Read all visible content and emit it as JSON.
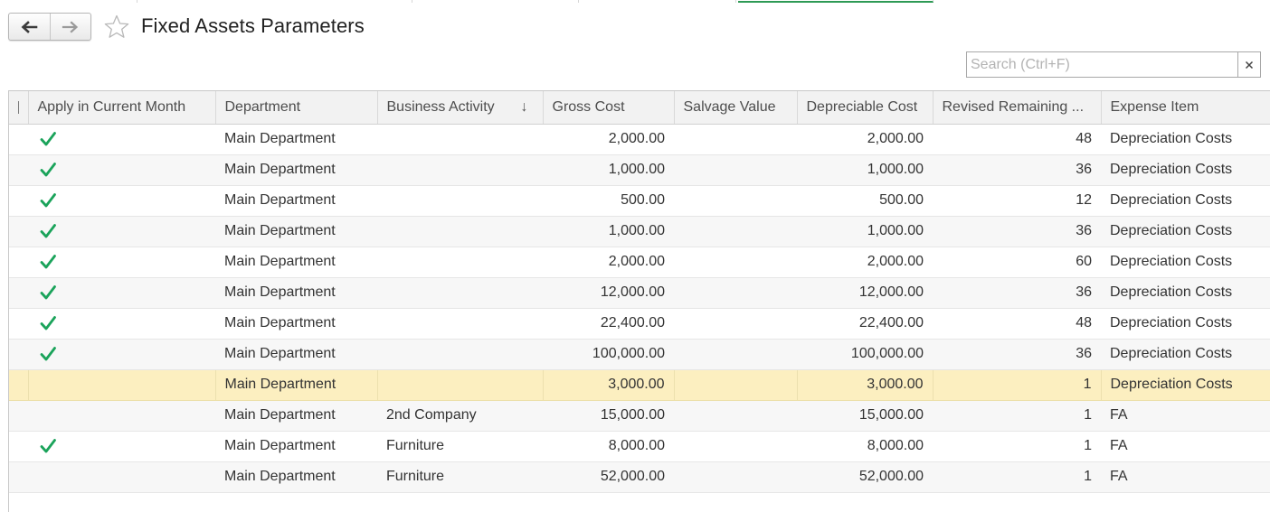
{
  "header": {
    "title": "Fixed Assets Parameters",
    "back_icon": "arrow-left-icon",
    "forward_icon": "arrow-right-icon",
    "favorite_icon": "star-outline-icon"
  },
  "search": {
    "placeholder": "Search (Ctrl+F)",
    "value": "",
    "clear_icon": "close-icon"
  },
  "colors": {
    "check": "#1aa35a",
    "selected_row": "#fcefc0",
    "active_tab": "#2e9a55"
  },
  "table": {
    "columns": [
      {
        "label": "Apply in Current Month"
      },
      {
        "label": "Department"
      },
      {
        "label": "Business Activity",
        "sort": "↓"
      },
      {
        "label": "Gross Cost"
      },
      {
        "label": "Salvage Value"
      },
      {
        "label": "Depreciable Cost"
      },
      {
        "label": "Revised Remaining ..."
      },
      {
        "label": "Expense Item"
      }
    ],
    "rows": [
      {
        "apply": true,
        "department": "Main Department",
        "business_activity": "",
        "gross_cost": "2,000.00",
        "salvage_value": "",
        "depreciable_cost": "2,000.00",
        "remaining": "48",
        "expense_item": "Depreciation Costs"
      },
      {
        "apply": true,
        "department": "Main Department",
        "business_activity": "",
        "gross_cost": "1,000.00",
        "salvage_value": "",
        "depreciable_cost": "1,000.00",
        "remaining": "36",
        "expense_item": "Depreciation Costs"
      },
      {
        "apply": true,
        "department": "Main Department",
        "business_activity": "",
        "gross_cost": "500.00",
        "salvage_value": "",
        "depreciable_cost": "500.00",
        "remaining": "12",
        "expense_item": "Depreciation Costs"
      },
      {
        "apply": true,
        "department": "Main Department",
        "business_activity": "",
        "gross_cost": "1,000.00",
        "salvage_value": "",
        "depreciable_cost": "1,000.00",
        "remaining": "36",
        "expense_item": "Depreciation Costs"
      },
      {
        "apply": true,
        "department": "Main Department",
        "business_activity": "",
        "gross_cost": "2,000.00",
        "salvage_value": "",
        "depreciable_cost": "2,000.00",
        "remaining": "60",
        "expense_item": "Depreciation Costs"
      },
      {
        "apply": true,
        "department": "Main Department",
        "business_activity": "",
        "gross_cost": "12,000.00",
        "salvage_value": "",
        "depreciable_cost": "12,000.00",
        "remaining": "36",
        "expense_item": "Depreciation Costs"
      },
      {
        "apply": true,
        "department": "Main Department",
        "business_activity": "",
        "gross_cost": "22,400.00",
        "salvage_value": "",
        "depreciable_cost": "22,400.00",
        "remaining": "48",
        "expense_item": "Depreciation Costs"
      },
      {
        "apply": true,
        "department": "Main Department",
        "business_activity": "",
        "gross_cost": "100,000.00",
        "salvage_value": "",
        "depreciable_cost": "100,000.00",
        "remaining": "36",
        "expense_item": "Depreciation Costs"
      },
      {
        "apply": false,
        "selected": true,
        "department": "Main Department",
        "business_activity": "",
        "gross_cost": "3,000.00",
        "salvage_value": "",
        "depreciable_cost": "3,000.00",
        "remaining": "1",
        "expense_item": "Depreciation Costs"
      },
      {
        "apply": false,
        "department": "Main Department",
        "business_activity": "2nd Company",
        "gross_cost": "15,000.00",
        "salvage_value": "",
        "depreciable_cost": "15,000.00",
        "remaining": "1",
        "expense_item": "FA"
      },
      {
        "apply": true,
        "department": "Main Department",
        "business_activity": "Furniture",
        "gross_cost": "8,000.00",
        "salvage_value": "",
        "depreciable_cost": "8,000.00",
        "remaining": "1",
        "expense_item": "FA"
      },
      {
        "apply": false,
        "department": "Main Department",
        "business_activity": "Furniture",
        "gross_cost": "52,000.00",
        "salvage_value": "",
        "depreciable_cost": "52,000.00",
        "remaining": "1",
        "expense_item": "FA"
      }
    ]
  }
}
